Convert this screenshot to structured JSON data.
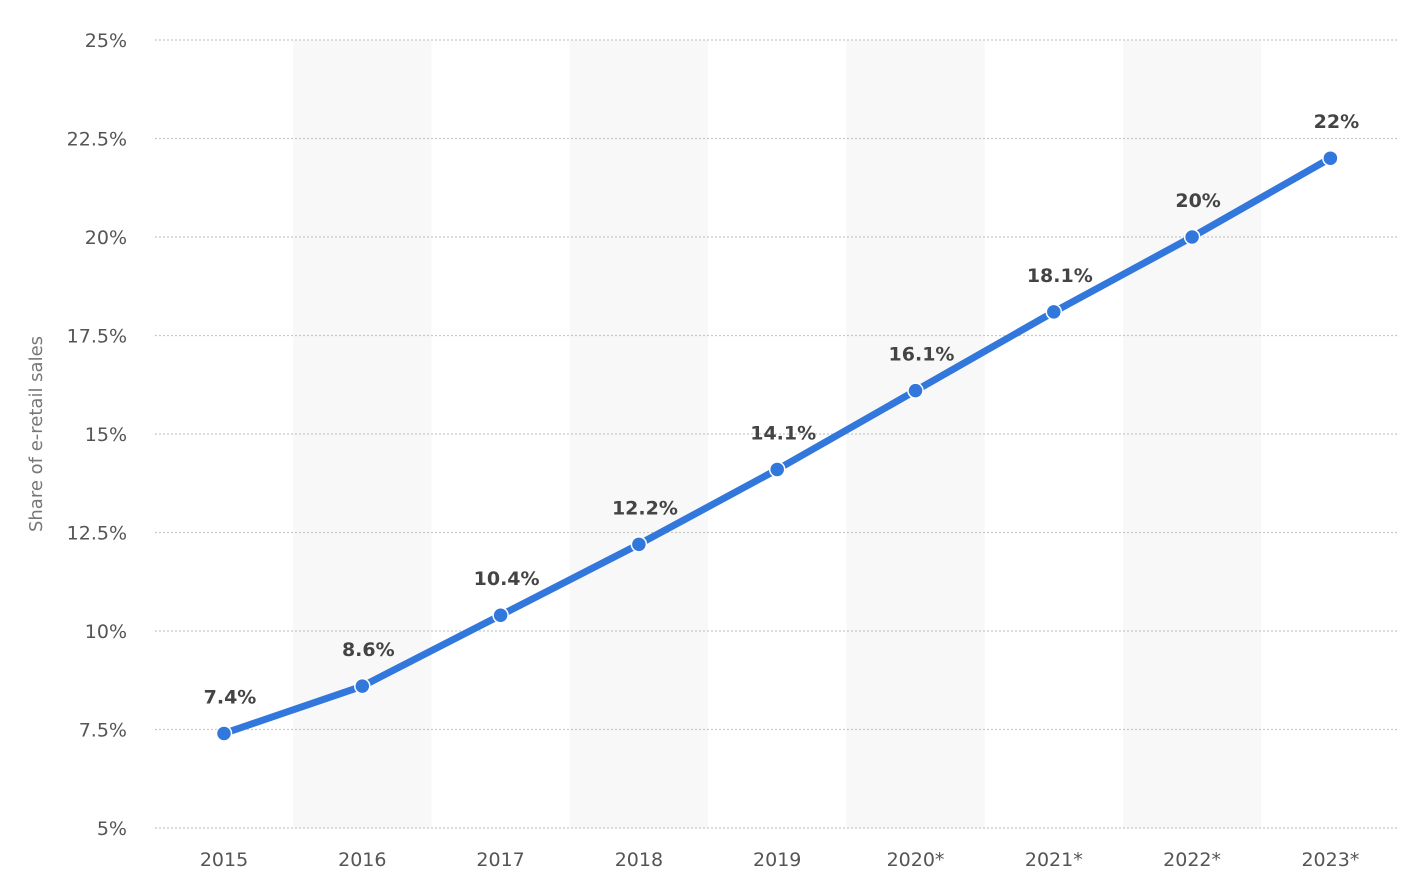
{
  "chart_data": {
    "type": "line",
    "categories": [
      "2015",
      "2016",
      "2017",
      "2018",
      "2019",
      "2020*",
      "2021*",
      "2022*",
      "2023*"
    ],
    "series": [
      {
        "values": [
          7.4,
          8.6,
          10.4,
          12.2,
          14.1,
          16.1,
          18.1,
          20,
          22
        ],
        "data_labels": [
          "7.4%",
          "8.6%",
          "10.4%",
          "12.2%",
          "14.1%",
          "16.1%",
          "18.1%",
          "20%",
          "22%"
        ],
        "color": "#3277db"
      }
    ],
    "ylabel": "Share of e-retail sales",
    "ylim": [
      5,
      25
    ],
    "y_ticks": [
      5,
      7.5,
      10,
      12.5,
      15,
      17.5,
      20,
      22.5,
      25
    ],
    "y_tick_labels": [
      "5%",
      "7.5%",
      "10%",
      "12.5%",
      "15%",
      "17.5%",
      "20%",
      "22.5%",
      "25%"
    ],
    "grid": true,
    "alternating_bands": true,
    "band_color": "#f8f8f8",
    "grid_color": "#c8c8c8"
  }
}
